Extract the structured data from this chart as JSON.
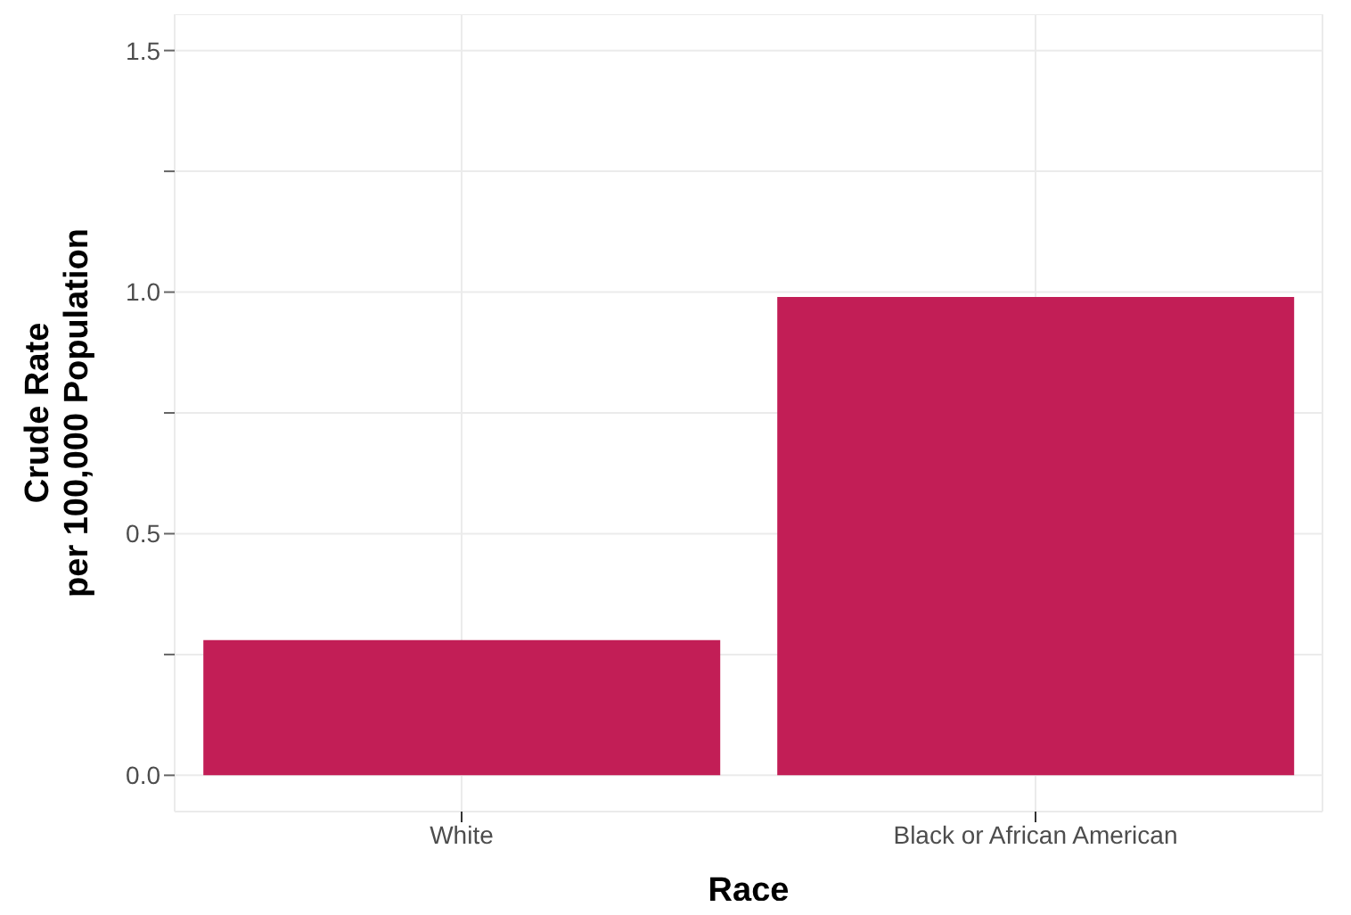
{
  "chart_data": {
    "type": "bar",
    "xlabel": "Race",
    "ylabel": "Crude Rate\nper 100,000 Population",
    "categories": [
      "White",
      "Black or African American"
    ],
    "values": [
      0.28,
      0.99
    ],
    "color": "#c21e56",
    "ylim": [
      -0.075,
      1.575
    ],
    "yticks": [
      {
        "value": 0,
        "label": "0.0"
      },
      {
        "value": 0.25,
        "label": null
      },
      {
        "value": 0.5,
        "label": "0.5"
      },
      {
        "value": 0.75,
        "label": null
      },
      {
        "value": 1,
        "label": "1.0"
      },
      {
        "value": 1.25,
        "label": null
      },
      {
        "value": 1.5,
        "label": "1.5"
      }
    ],
    "grid": true
  }
}
